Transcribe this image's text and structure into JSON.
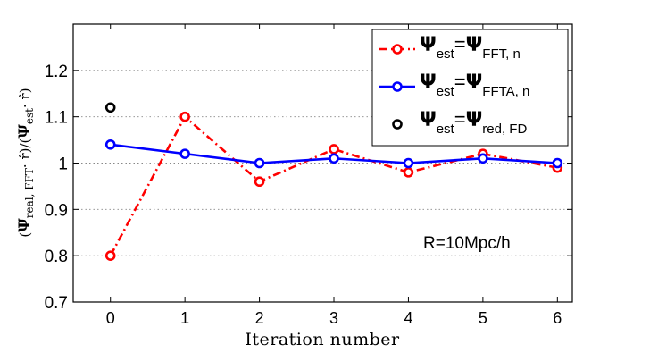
{
  "chart_data": {
    "type": "line",
    "title": "",
    "xlabel": "Iteration number",
    "ylabel": {
      "open": "(",
      "psi_real": "Ψ",
      "sub_real": "real, FFT",
      "dot_r1": "· r̂",
      "mid": ")/(",
      "psi_est": "Ψ",
      "sub_est": "est",
      "dot_r2": "· r̂",
      "close": ")"
    },
    "x": [
      0,
      1,
      2,
      3,
      4,
      5,
      6
    ],
    "x_ticks": [
      "0",
      "1",
      "2",
      "3",
      "4",
      "5",
      "6"
    ],
    "xlim": [
      -0.5,
      6.2
    ],
    "ylim": [
      0.7,
      1.3
    ],
    "y_ticks": [
      "0.7",
      "0.8",
      "0.9",
      "1",
      "1.1",
      "1.2"
    ],
    "y_tick_values": [
      0.7,
      0.8,
      0.9,
      1.0,
      1.1,
      1.2
    ],
    "grid": true,
    "legend_position": "top-right",
    "annotation": "R=10Mpc/h",
    "series": [
      {
        "name": "Ψest=ΨFFT, n",
        "legend": {
          "psi1": "Ψ",
          "sub1": "est",
          "eq": "=",
          "psi2": "Ψ",
          "sub2": "FFT, n"
        },
        "color": "#ff0000",
        "style": "dash-dot",
        "x": [
          0,
          1,
          2,
          3,
          4,
          5,
          6
        ],
        "values": [
          0.8,
          1.1,
          0.96,
          1.03,
          0.98,
          1.02,
          0.99
        ]
      },
      {
        "name": "Ψest=ΨFFTA, n",
        "legend": {
          "psi1": "Ψ",
          "sub1": "est",
          "eq": "=",
          "psi2": "Ψ",
          "sub2": "FFTA, n"
        },
        "color": "#0000ff",
        "style": "solid",
        "x": [
          0,
          1,
          2,
          3,
          4,
          5,
          6
        ],
        "values": [
          1.04,
          1.02,
          1.0,
          1.01,
          1.0,
          1.01,
          1.0
        ]
      },
      {
        "name": "Ψest=Ψred, FD",
        "legend": {
          "psi1": "Ψ",
          "sub1": "est",
          "eq": "=",
          "psi2": "Ψ",
          "sub2": "red, FD"
        },
        "color": "#000000",
        "style": "marker",
        "x": [
          0
        ],
        "values": [
          1.12
        ]
      }
    ]
  }
}
